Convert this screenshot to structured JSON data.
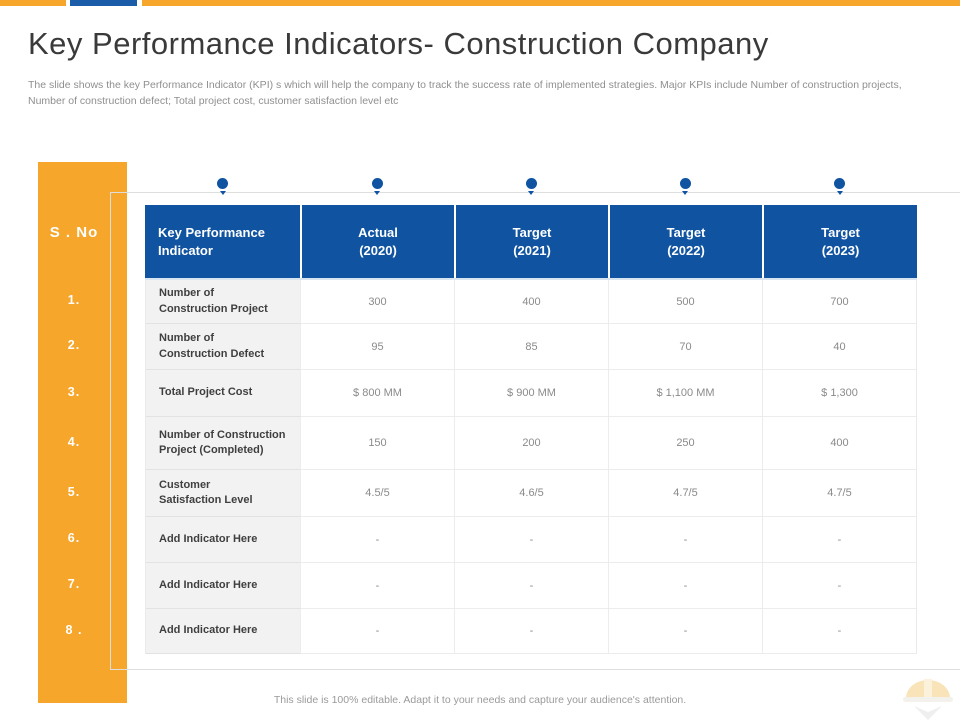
{
  "slide": {
    "title": "Key Performance Indicators- Construction Company",
    "subtitle": "The slide shows the key Performance Indicator (KPI) s which will help the company to track the success rate of implemented strategies. Major KPIs include Number of construction projects, Number of construction defect; Total project cost, customer satisfaction level etc",
    "footer": "This slide is 100% editable. Adapt it to your needs and capture your audience's attention."
  },
  "colors": {
    "accent_orange": "#F5A62B",
    "accent_blue": "#0F53A1",
    "header_text": "#FFFFFF",
    "label_text": "#3F3F3F",
    "value_text": "#8A8A8A",
    "label_cell_bg": "#F2F2F2"
  },
  "sno": {
    "header": "S . No",
    "numbers": [
      "1.",
      "2.",
      "3.",
      "4.",
      "5.",
      "6.",
      "7.",
      "8 ."
    ]
  },
  "icons": {
    "column_marker": "blue-pin-dot",
    "watermark": "construction-helmet"
  },
  "chart_data": {
    "type": "table",
    "columns": [
      "Key Performance\nIndicator",
      "Actual\n(2020)",
      "Target\n(2021)",
      "Target\n(2022)",
      "Target\n(2023)"
    ],
    "rows": [
      {
        "label": "Number of\nConstruction Project",
        "values": [
          "300",
          "400",
          "500",
          "700"
        ]
      },
      {
        "label": "Number of\nConstruction Defect",
        "values": [
          "95",
          "85",
          "70",
          "40"
        ]
      },
      {
        "label": "Total Project Cost",
        "values": [
          "$ 800 MM",
          "$ 900 MM",
          "$ 1,100 MM",
          "$ 1,300"
        ]
      },
      {
        "label": "Number of Construction\nProject (Completed)",
        "values": [
          "150",
          "200",
          "250",
          "400"
        ]
      },
      {
        "label": "Customer\nSatisfaction Level",
        "values": [
          "4.5/5",
          "4.6/5",
          "4.7/5",
          "4.7/5"
        ]
      },
      {
        "label": "Add Indicator Here",
        "values": [
          "-",
          "-",
          "-",
          "-"
        ]
      },
      {
        "label": "Add Indicator Here",
        "values": [
          "-",
          "-",
          "-",
          "-"
        ]
      },
      {
        "label": "Add Indicator Here",
        "values": [
          "-",
          "-",
          "-",
          "-"
        ]
      }
    ]
  }
}
